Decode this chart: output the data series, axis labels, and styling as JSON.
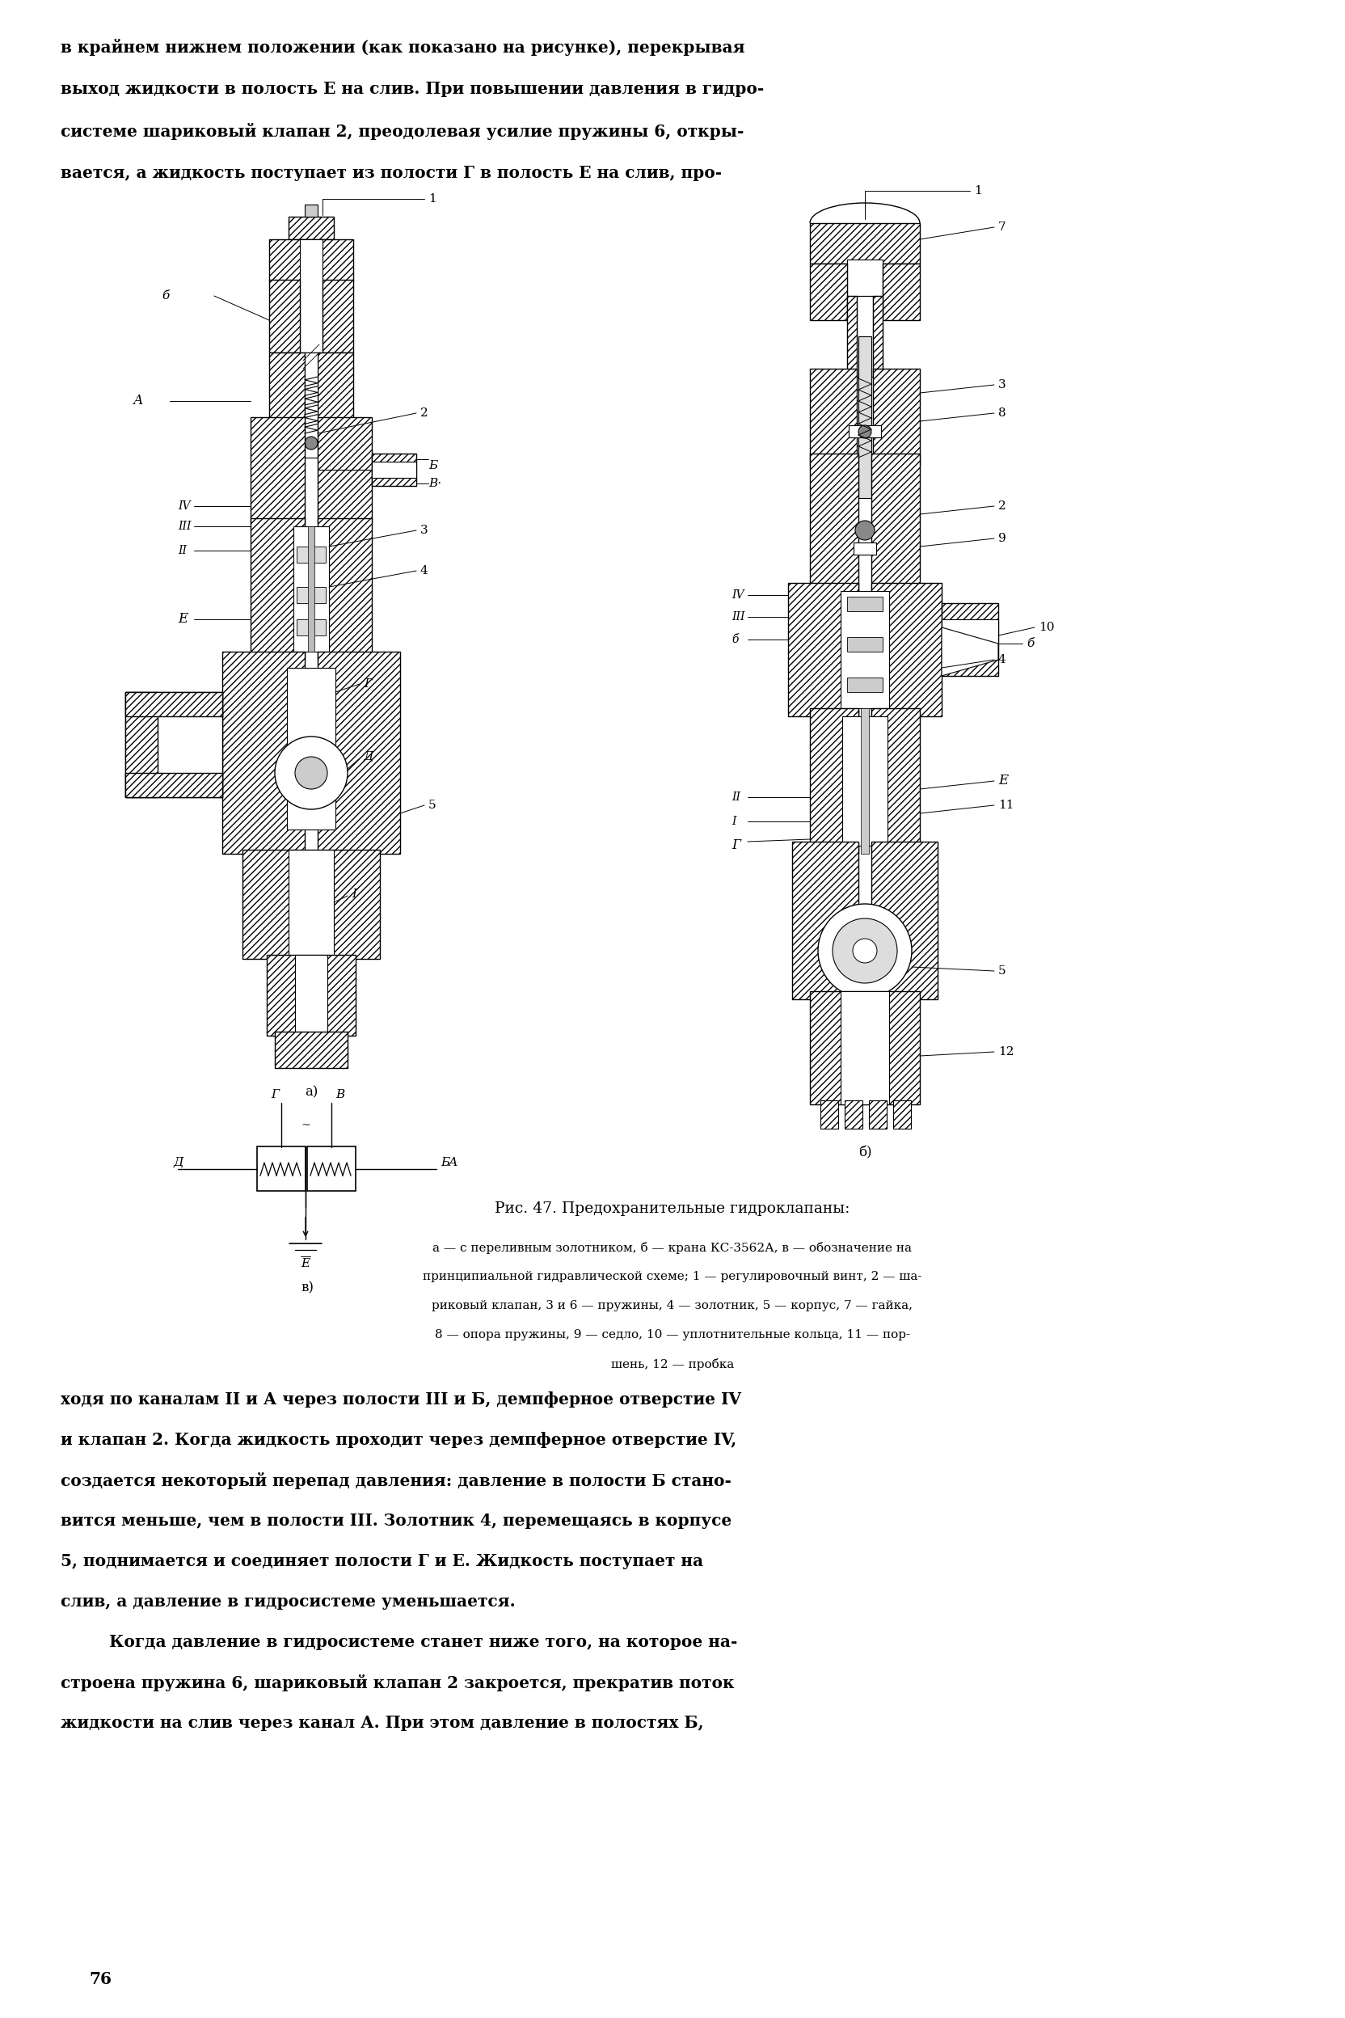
{
  "bg_color": "#ffffff",
  "page_width": 16.64,
  "page_height": 24.96,
  "text_color": "#000000",
  "body_fontsize": 14.5,
  "small_fontsize": 11.5,
  "caption_fontsize": 11.0,
  "title_fontsize": 13.5,
  "top_texts": [
    "в крайнем нижнем положении (как показано на рисунке), перекрывая",
    "выход жидкости в полость Е на слив. При повышении давления в гидро-",
    "системе шариковый клапан 2, преодолевая усилие пружины 6, откры-",
    "вается, а жидкость поступает из полости Г в полость Е на слив, про-"
  ],
  "figure_title": "Рис. 47. Предохранительные гидроклапаны:",
  "figure_caption_lines": [
    "а — с переливным золотником, б — крана КС-3562А, в — обозначение на",
    "принципиальной гидравлической схеме; 1 — регулировочный винт, 2 — ша-",
    "риковый клапан, 3 и 6 — пружины, 4 — золотник, 5 — корпус, 7 — гайка,",
    "8 — опора пружины, 9 — седло, 10 — уплотнительные кольца, 11 — пор-",
    "шень, 12 — пробка"
  ],
  "bottom_texts": [
    "ходя по каналам II и А через полости III и Б, демпферное отверстие IV",
    "и клапан 2. Когда жидкость проходит через демпферное отверстие IV,",
    "создается некоторый перепад давления: давление в полости Б стано-",
    "вится меньше, чем в полости III. Золотник 4, перемещаясь в корпусе",
    "5, поднимается и соединяет полости Г и Е. Жидкость поступает на",
    "слив, а давление в гидросистеме уменьшается.",
    "\tКогда давление в гидросистеме станет ниже того, на которое на-",
    "строена пружина 6, шариковый клапан 2 закроется, прекратив поток",
    "жидкости на слив через канал А. При этом давление в полостях Б,"
  ],
  "page_number": "76"
}
